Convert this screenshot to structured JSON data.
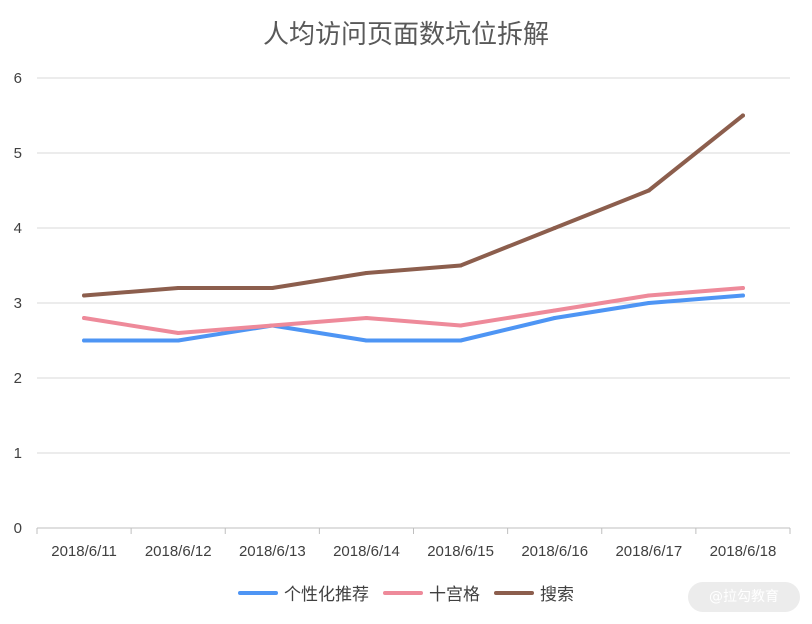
{
  "chart_data": {
    "type": "line",
    "title": "人均访问页面数坑位拆解",
    "categories": [
      "2018/6/11",
      "2018/6/12",
      "2018/6/13",
      "2018/6/14",
      "2018/6/15",
      "2018/6/16",
      "2018/6/17",
      "2018/6/18"
    ],
    "ylim": [
      0,
      6
    ],
    "yticks": [
      "0",
      "1",
      "2",
      "3",
      "4",
      "5",
      "6"
    ],
    "grid": true,
    "legend_position": "bottom",
    "series": [
      {
        "name": "个性化推荐",
        "color": "#4e95f4",
        "values": [
          2.5,
          2.5,
          2.7,
          2.5,
          2.5,
          2.8,
          3.0,
          3.1
        ]
      },
      {
        "name": "十宫格",
        "color": "#ee8a9a",
        "values": [
          2.8,
          2.6,
          2.7,
          2.8,
          2.7,
          2.9,
          3.1,
          3.2
        ]
      },
      {
        "name": "搜索",
        "color": "#8c5e4d",
        "values": [
          3.1,
          3.2,
          3.2,
          3.4,
          3.5,
          4.0,
          4.5,
          5.5
        ]
      }
    ]
  },
  "watermark": "@拉勾教育"
}
